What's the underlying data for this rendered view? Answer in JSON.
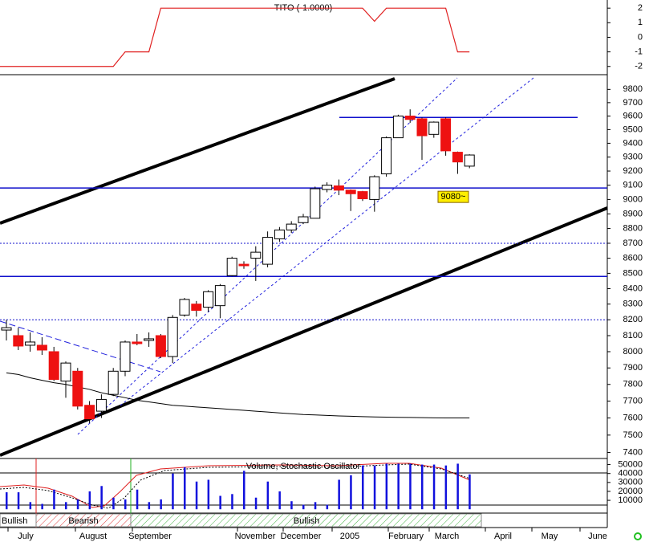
{
  "chart_data": [
    {
      "type": "indicator",
      "title": "TITO (-1.0000)",
      "color": "#e02020",
      "values": [
        -2,
        -2,
        -2,
        -2,
        -2,
        -2,
        -2,
        -2,
        -2,
        -2,
        -1,
        -1,
        -1,
        2,
        2,
        2,
        2,
        2,
        2,
        2,
        2,
        2,
        2,
        2,
        2,
        2,
        2,
        2,
        2,
        2,
        2,
        1.1,
        2,
        2,
        2,
        2,
        2,
        2,
        -1,
        -1
      ],
      "ylim": [
        -2.4,
        2.45
      ],
      "yticks": [
        2,
        1,
        0,
        -1,
        -2
      ]
    },
    {
      "type": "candlestick",
      "log_scale": true,
      "up_color": "#ffffff",
      "down_color": "#ee1111",
      "open": [
        8135,
        8100,
        8040,
        8040,
        8000,
        7820,
        7880,
        7675,
        7640,
        7740,
        7880,
        8060,
        8070,
        8100,
        7970,
        8230,
        8300,
        8280,
        8290,
        8485,
        8560,
        8600,
        8560,
        8730,
        8790,
        8840,
        8870,
        9070,
        9095,
        9065,
        9055,
        9000,
        9180,
        9440,
        9600,
        9580,
        9465,
        9580,
        9335,
        9235
      ],
      "close": [
        8150,
        8035,
        8060,
        8010,
        7830,
        7930,
        7670,
        7595,
        7710,
        7880,
        8060,
        8050,
        8080,
        7970,
        8215,
        8330,
        8260,
        8380,
        8420,
        8600,
        8550,
        8640,
        8740,
        8790,
        8830,
        8880,
        9075,
        9100,
        9065,
        9040,
        9005,
        9160,
        9440,
        9600,
        9575,
        9455,
        9555,
        9345,
        9265,
        9315
      ],
      "high": [
        8200,
        8150,
        8120,
        8090,
        8030,
        7940,
        7900,
        7700,
        7740,
        7900,
        8070,
        8110,
        8120,
        8110,
        8230,
        8340,
        8320,
        8390,
        8430,
        8610,
        8580,
        8680,
        8780,
        8810,
        8850,
        8900,
        9090,
        9120,
        9140,
        9070,
        9060,
        9170,
        9450,
        9610,
        9650,
        9590,
        9560,
        9590,
        9340,
        9320
      ],
      "low": [
        8070,
        8010,
        8000,
        7980,
        7820,
        7720,
        7650,
        7570,
        7600,
        7730,
        7850,
        8040,
        8030,
        7960,
        7930,
        8220,
        8220,
        8250,
        8210,
        8480,
        8530,
        8450,
        8540,
        8710,
        8770,
        8830,
        8870,
        9050,
        9030,
        8920,
        8990,
        8915,
        9160,
        9440,
        9550,
        9280,
        9440,
        9310,
        9180,
        9220
      ],
      "moving_average": {
        "color": "#000000",
        "values": [
          7870,
          7860,
          7840,
          7825,
          7810,
          7800,
          7785,
          7770,
          7750,
          7735,
          7720,
          7705,
          7695,
          7685,
          7675,
          7670,
          7665,
          7660,
          7655,
          7650,
          7645,
          7640,
          7635,
          7630,
          7625,
          7620,
          7618,
          7615,
          7612,
          7610,
          7608,
          7606,
          7605,
          7604,
          7603,
          7602,
          7601,
          7600,
          7600,
          7600
        ]
      },
      "hlines": [
        {
          "value": 9590,
          "style": "solid",
          "color": "#1010cc"
        },
        {
          "value": 9080,
          "style": "solid",
          "color": "#1010cc"
        },
        {
          "value": 8700,
          "style": "dotted",
          "color": "#1010cc"
        },
        {
          "value": 8480,
          "style": "solid",
          "color": "#1010cc"
        },
        {
          "value": 8200,
          "style": "dotted",
          "color": "#1010cc"
        }
      ],
      "annotation": "9080~",
      "ylim": [
        7370,
        9900
      ],
      "yticks": [
        9800,
        9700,
        9600,
        9500,
        9400,
        9300,
        9200,
        9100,
        9000,
        8900,
        8800,
        8700,
        8600,
        8500,
        8400,
        8300,
        8200,
        8100,
        8000,
        7900,
        7800,
        7700,
        7600,
        7500,
        7400
      ]
    },
    {
      "type": "bar",
      "title": "Volume, Stochastic Oscillator",
      "color": "#1010dd",
      "values": [
        19000,
        19000,
        8000,
        6000,
        22000,
        8000,
        11000,
        20000,
        26000,
        13000,
        11000,
        22000,
        8000,
        11000,
        40000,
        47000,
        31000,
        33000,
        15000,
        17000,
        43000,
        13000,
        31000,
        20000,
        9000,
        5000,
        8000,
        5000,
        33000,
        38000,
        49000,
        49000,
        51000,
        51000,
        51000,
        50000,
        50000,
        49000,
        51000,
        39000
      ],
      "ylim": [
        -2500,
        55000
      ],
      "yticks": [
        50000,
        40000,
        30000,
        20000,
        10000
      ]
    }
  ],
  "x_labels": [
    "July",
    "August",
    "September",
    "November",
    "December",
    "2005",
    "February",
    "March",
    "April",
    "May",
    "June"
  ],
  "signal_bands": [
    "Bullish",
    "Bearish",
    "Bullish"
  ]
}
